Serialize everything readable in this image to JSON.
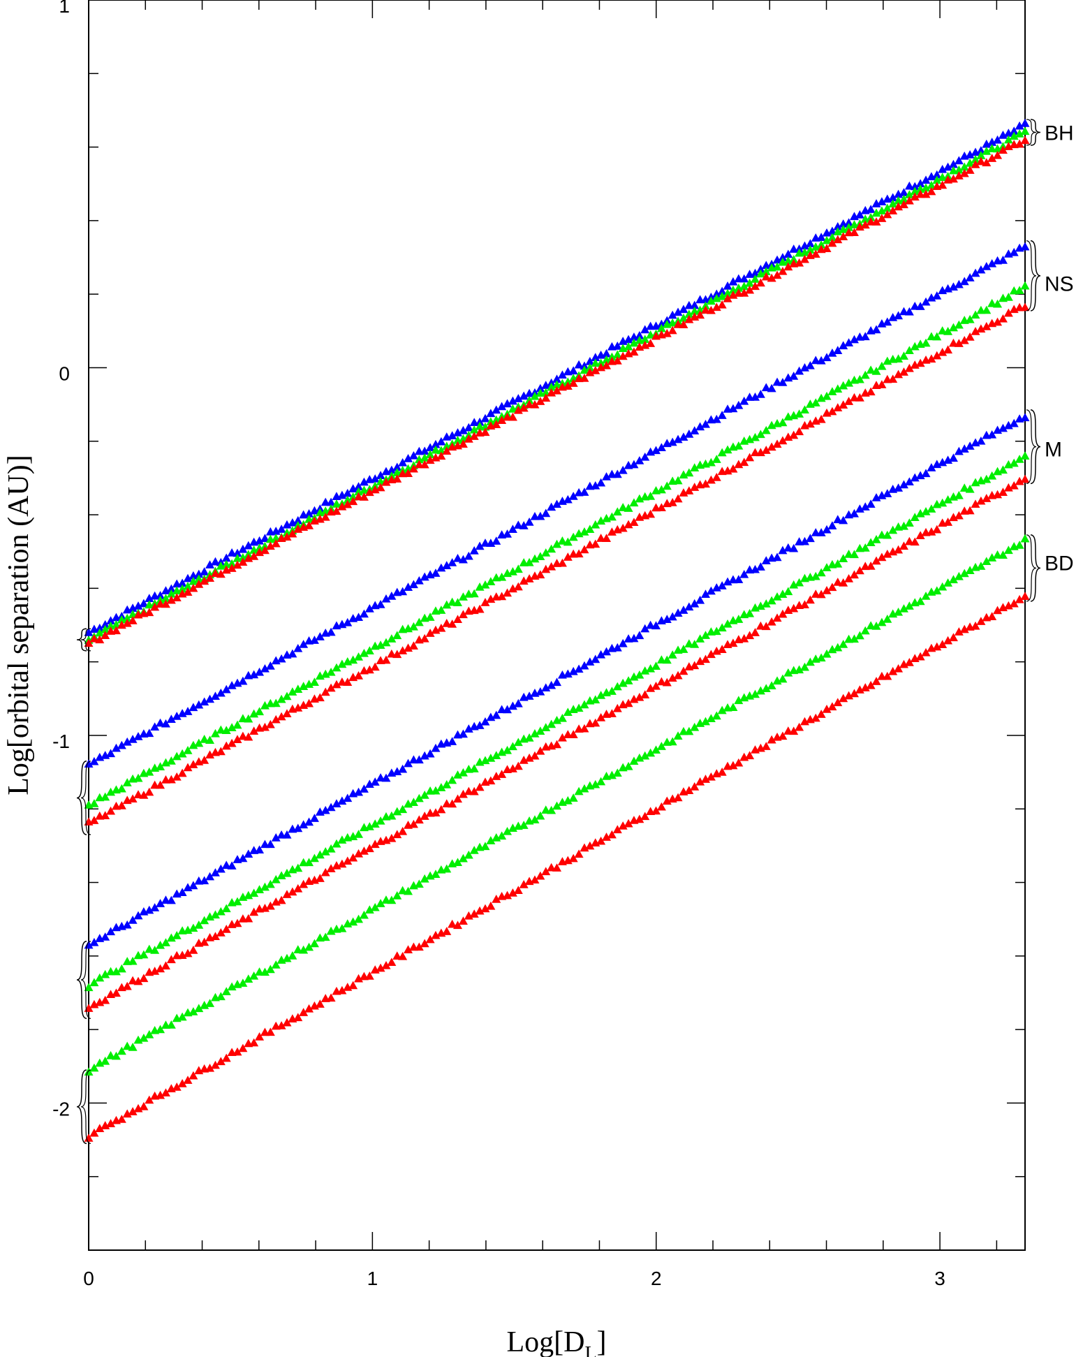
{
  "chart_data": {
    "type": "scatter",
    "xlabel": "Log[D",
    "xlabel_sub": "L",
    "xlabel_close": "]",
    "ylabel": "Log[orbital separation (AU)]",
    "xlim": [
      0,
      3.3
    ],
    "ylim": [
      -2.4,
      1.0
    ],
    "x_ticks": [
      "0",
      "1",
      "2",
      "3"
    ],
    "y_ticks": [
      "1",
      "0",
      "-1",
      "-2"
    ],
    "x_tick_values": [
      0,
      1,
      2,
      3
    ],
    "y_tick_values": [
      1,
      0,
      -1,
      -2
    ],
    "colors": {
      "blue": "#0000ff",
      "green": "#00ee00",
      "red": "#ff0000"
    },
    "series": [
      {
        "group": "BH",
        "color": "blue",
        "x": [
          0,
          3.3
        ],
        "y": [
          -0.72,
          0.66
        ]
      },
      {
        "group": "BH",
        "color": "green",
        "x": [
          0,
          3.3
        ],
        "y": [
          -0.74,
          0.64
        ]
      },
      {
        "group": "BH",
        "color": "red",
        "x": [
          0,
          3.3
        ],
        "y": [
          -0.75,
          0.62
        ]
      },
      {
        "group": "NS",
        "color": "blue",
        "x": [
          0,
          3.3
        ],
        "y": [
          -1.08,
          0.33
        ]
      },
      {
        "group": "NS",
        "color": "green",
        "x": [
          0,
          3.3
        ],
        "y": [
          -1.19,
          0.22
        ]
      },
      {
        "group": "NS",
        "color": "red",
        "x": [
          0,
          3.3
        ],
        "y": [
          -1.24,
          0.17
        ]
      },
      {
        "group": "M",
        "color": "blue",
        "x": [
          0,
          3.3
        ],
        "y": [
          -1.57,
          -0.13
        ]
      },
      {
        "group": "M",
        "color": "green",
        "x": [
          0,
          3.3
        ],
        "y": [
          -1.68,
          -0.24
        ]
      },
      {
        "group": "M",
        "color": "red",
        "x": [
          0,
          3.3
        ],
        "y": [
          -1.74,
          -0.3
        ]
      },
      {
        "group": "BD",
        "color": "green",
        "x": [
          0,
          3.3
        ],
        "y": [
          -1.91,
          -0.47
        ]
      },
      {
        "group": "BD",
        "color": "red",
        "x": [
          0,
          3.3
        ],
        "y": [
          -2.09,
          -0.62
        ]
      }
    ],
    "group_labels": [
      {
        "text": "BH",
        "y": 0.64
      },
      {
        "text": "NS",
        "y": 0.23
      },
      {
        "text": "M",
        "y": -0.22
      },
      {
        "text": "BD",
        "y": -0.53
      }
    ],
    "left_braces": [
      {
        "y_top": -0.71,
        "y_bottom": -0.77
      },
      {
        "y_top": -1.07,
        "y_bottom": -1.27
      },
      {
        "y_top": -1.56,
        "y_bottom": -1.77
      },
      {
        "y_top": -1.91,
        "y_bottom": -2.11
      }
    ]
  }
}
